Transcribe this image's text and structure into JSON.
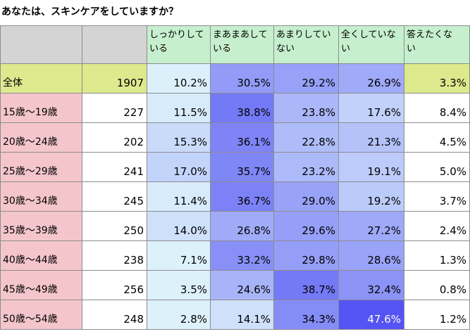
{
  "title": "あなたは、スキンケアをしていますか？",
  "chart_data": {
    "type": "table",
    "columns": [
      "",
      "",
      "しっかりしている",
      "まあまあしている",
      "あまりしていない",
      "全くしていない",
      "答えたくない"
    ],
    "header_lines": [
      [
        "しっかりして",
        "いる"
      ],
      [
        "まあまあして",
        "いる"
      ],
      [
        "あまりしてい",
        "ない"
      ],
      [
        "全くしていな",
        "い"
      ],
      [
        "答えたくな",
        "い"
      ]
    ],
    "rows": [
      {
        "label": "全体",
        "count": "1907",
        "values": [
          "10.2%",
          "30.5%",
          "29.2%",
          "26.9%",
          "3.3%"
        ]
      },
      {
        "label": "15歳～19歳",
        "count": "227",
        "values": [
          "11.5%",
          "38.8%",
          "23.8%",
          "17.6%",
          "8.4%"
        ]
      },
      {
        "label": "20歳～24歳",
        "count": "202",
        "values": [
          "15.3%",
          "36.1%",
          "22.8%",
          "21.3%",
          "4.5%"
        ]
      },
      {
        "label": "25歳～29歳",
        "count": "241",
        "values": [
          "17.0%",
          "35.7%",
          "23.2%",
          "19.1%",
          "5.0%"
        ]
      },
      {
        "label": "30歳～34歳",
        "count": "245",
        "values": [
          "11.4%",
          "36.7%",
          "29.0%",
          "19.2%",
          "3.7%"
        ]
      },
      {
        "label": "35歳～39歳",
        "count": "250",
        "values": [
          "14.0%",
          "26.8%",
          "29.6%",
          "27.2%",
          "2.4%"
        ]
      },
      {
        "label": "40歳～44歳",
        "count": "238",
        "values": [
          "7.1%",
          "33.2%",
          "29.8%",
          "28.6%",
          "1.3%"
        ]
      },
      {
        "label": "45歳～49歳",
        "count": "256",
        "values": [
          "3.5%",
          "24.6%",
          "38.7%",
          "32.4%",
          "0.8%"
        ]
      },
      {
        "label": "50歳～54歳",
        "count": "248",
        "values": [
          "2.8%",
          "14.1%",
          "34.3%",
          "47.6%",
          "1.2%"
        ]
      }
    ],
    "colors": {
      "header_question": "#c6efce",
      "header_blank": "#d4d4d4",
      "total_row": "#dde98d",
      "age_label": "#f4c6cc",
      "heat_low": "#ddf1fb",
      "heat_high": "#5454f4",
      "answer_no": "#ffffff",
      "text_light": "#ffffff"
    }
  }
}
